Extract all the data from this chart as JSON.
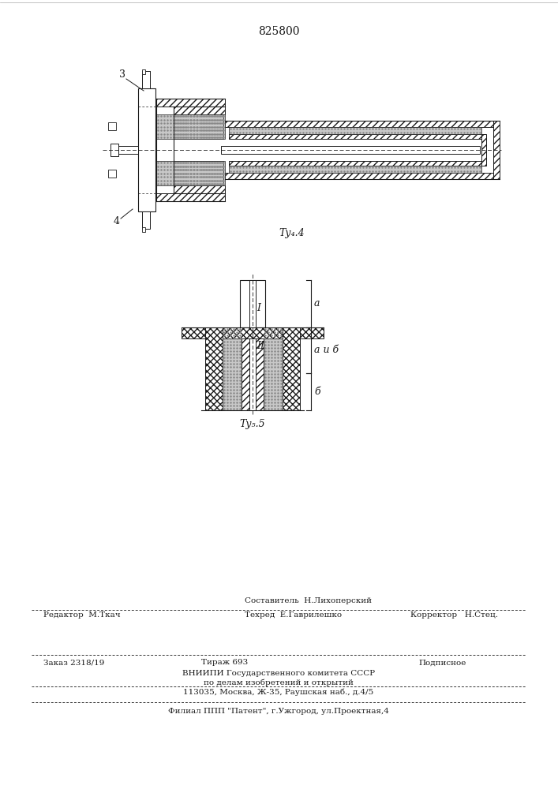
{
  "patent_number": "825800",
  "fig4_label": "Τу₄.4",
  "fig5_label": "Τу₅.5",
  "bg_color": "#ffffff",
  "line_color": "#1a1a1a",
  "label_3": "3",
  "label_4": "4",
  "label_I": "I",
  "label_II": "II",
  "label_a": "a",
  "label_ab": "a и б",
  "label_b": "б",
  "editor_line": "Редактор  М.Ткач",
  "composer_line1": "Составитель  Н.Лихоперский",
  "techred_line": "Техред  Е.Гаврилешко",
  "corrector_line": "Корректор   Н.Стец.",
  "order_line": "Заказ 2318/19",
  "tirazh_line": "Тираж 693",
  "podpisnoe_line": "Подписное",
  "vniip_line1": "ВНИИПИ Государственного комитета СССР",
  "vniip_line2": "по делам изобретений и открытий",
  "vniip_line3": "113035, Москва, Ж-35, Раушская наб., д.4/5",
  "filial_line": "Филиал ППП \"Патент\", г.Ужгород, ул.Проектная,4"
}
